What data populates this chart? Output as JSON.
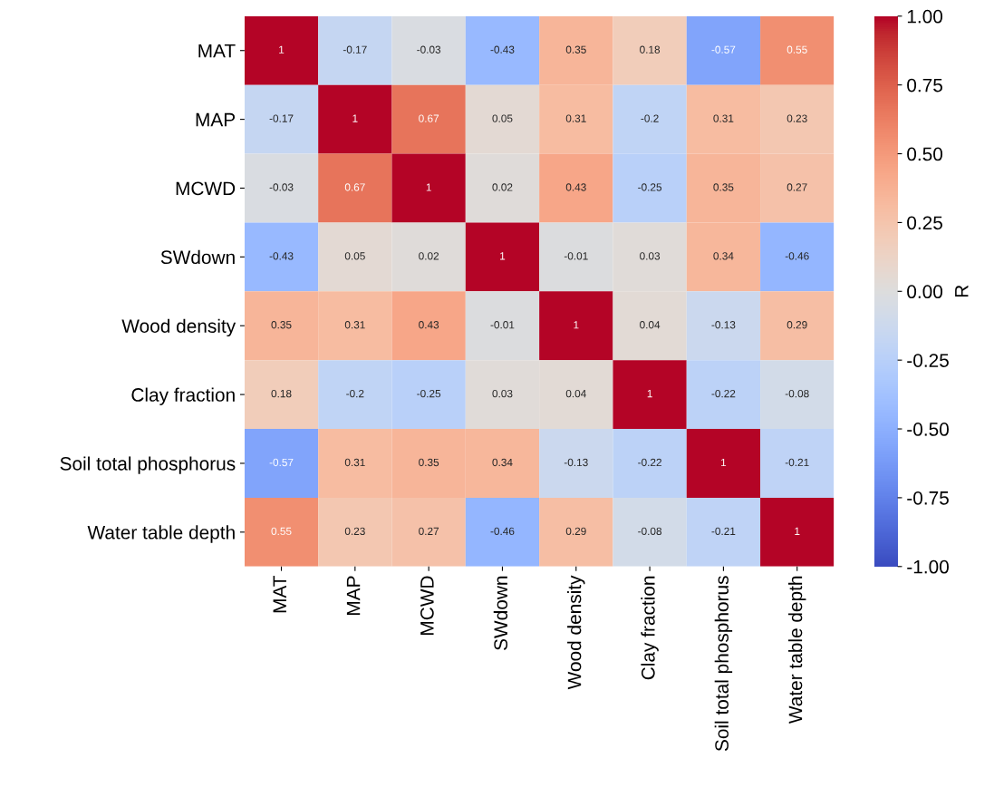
{
  "chart_data": {
    "type": "heatmap",
    "categories": [
      "MAT",
      "MAP",
      "MCWD",
      "SWdown",
      "Wood density",
      "Clay fraction",
      "Soil total phosphorus",
      "Water table depth"
    ],
    "y_categories": [
      "MAT",
      "MAP",
      "MCWD",
      "SWdown",
      "Wood density",
      "Clay fraction",
      "Soil total phosphorus",
      "Water table depth"
    ],
    "cells": [
      [
        1,
        -0.17,
        -0.03,
        -0.43,
        0.35,
        0.18,
        -0.57,
        0.55
      ],
      [
        -0.17,
        1,
        0.67,
        0.05,
        0.31,
        -0.2,
        0.31,
        0.23
      ],
      [
        -0.03,
        0.67,
        1,
        0.02,
        0.43,
        -0.25,
        0.35,
        0.27
      ],
      [
        -0.43,
        0.05,
        0.02,
        1,
        -0.01,
        0.03,
        0.34,
        -0.46
      ],
      [
        0.35,
        0.31,
        0.43,
        -0.01,
        1,
        0.04,
        -0.13,
        0.29
      ],
      [
        0.18,
        -0.2,
        -0.25,
        0.03,
        0.04,
        1,
        -0.22,
        -0.08
      ],
      [
        -0.57,
        0.31,
        0.35,
        0.34,
        -0.13,
        -0.22,
        1,
        -0.21
      ],
      [
        0.55,
        0.23,
        0.27,
        -0.46,
        0.29,
        -0.08,
        -0.21,
        1
      ]
    ],
    "data_labels": true,
    "clabel": "R",
    "clim": [
      -1,
      1
    ],
    "cticks": [
      {
        "value": 1,
        "label": "1.00"
      },
      {
        "value": 0.75,
        "label": "0.75"
      },
      {
        "value": 0.5,
        "label": "0.50"
      },
      {
        "value": 0.25,
        "label": "0.25"
      },
      {
        "value": 0,
        "label": "0.00"
      },
      {
        "value": -0.25,
        "label": "-0.25"
      },
      {
        "value": -0.5,
        "label": "-0.50"
      },
      {
        "value": -0.75,
        "label": "-0.75"
      },
      {
        "value": -1,
        "label": "-1.00"
      }
    ]
  }
}
